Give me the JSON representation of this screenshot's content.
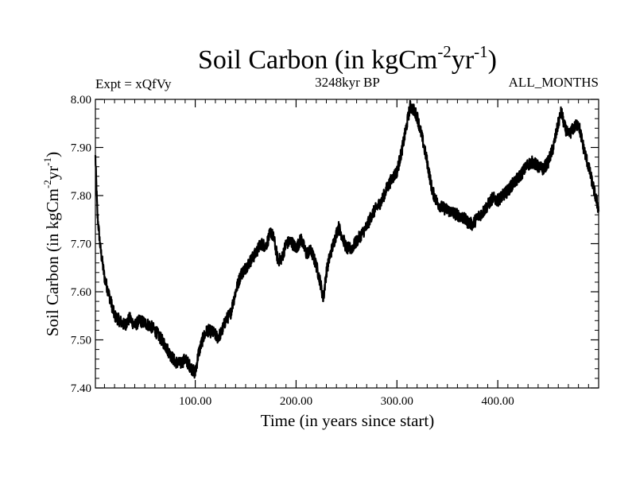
{
  "chart_data": {
    "type": "line",
    "title": "Soil Carbon (in kgCm",
    "title_sup1": "-2",
    "title_mid": "yr",
    "title_sup2": "-1",
    "title_end": ")",
    "subtitle_left": "Expt = xQfVy",
    "subtitle_center": "3248kyr BP",
    "subtitle_right": "ALL_MONTHS",
    "xlabel": "Time (in years since start)",
    "ylabel": "Soil Carbon (in kgCm",
    "ylabel_sup1": "-2",
    "ylabel_mid": "yr",
    "ylabel_sup2": "-1",
    "ylabel_end": ")",
    "xlim": [
      1,
      500
    ],
    "ylim": [
      7.4,
      8.0
    ],
    "x_ticks": [
      100,
      200,
      300,
      400
    ],
    "x_tick_labels": [
      "100.00",
      "200.00",
      "300.00",
      "400.00"
    ],
    "y_ticks": [
      7.4,
      7.5,
      7.6,
      7.7,
      7.8,
      7.9,
      8.0
    ],
    "y_tick_labels": [
      "7.40",
      "7.50",
      "7.60",
      "7.70",
      "7.80",
      "7.90",
      "8.00"
    ],
    "noise_amplitude": 0.013,
    "series": [
      {
        "name": "Soil Carbon",
        "color": "#000000",
        "x": [
          1,
          3,
          6,
          10,
          15,
          20,
          25,
          30,
          35,
          40,
          45,
          50,
          55,
          60,
          65,
          70,
          75,
          80,
          85,
          90,
          95,
          100,
          103,
          108,
          112,
          118,
          122,
          126,
          130,
          135,
          140,
          145,
          150,
          155,
          160,
          165,
          170,
          175,
          178,
          182,
          186,
          190,
          195,
          200,
          205,
          210,
          215,
          220,
          224,
          227,
          230,
          233,
          237,
          242,
          245,
          250,
          255,
          260,
          265,
          270,
          275,
          280,
          285,
          290,
          295,
          300,
          305,
          310,
          313,
          316,
          320,
          325,
          330,
          335,
          340,
          345,
          350,
          355,
          360,
          365,
          370,
          375,
          380,
          385,
          390,
          395,
          400,
          405,
          410,
          415,
          420,
          425,
          430,
          435,
          440,
          445,
          450,
          455,
          460,
          463,
          466,
          470,
          475,
          480,
          485,
          490,
          495,
          500
        ],
        "values": [
          7.88,
          7.76,
          7.69,
          7.63,
          7.59,
          7.55,
          7.54,
          7.53,
          7.545,
          7.53,
          7.54,
          7.535,
          7.53,
          7.52,
          7.505,
          7.49,
          7.47,
          7.455,
          7.45,
          7.46,
          7.445,
          7.43,
          7.47,
          7.505,
          7.52,
          7.515,
          7.505,
          7.515,
          7.54,
          7.555,
          7.6,
          7.635,
          7.65,
          7.665,
          7.68,
          7.7,
          7.695,
          7.725,
          7.71,
          7.665,
          7.67,
          7.7,
          7.705,
          7.69,
          7.71,
          7.68,
          7.685,
          7.655,
          7.62,
          7.585,
          7.64,
          7.67,
          7.7,
          7.735,
          7.72,
          7.69,
          7.69,
          7.705,
          7.72,
          7.735,
          7.76,
          7.775,
          7.79,
          7.815,
          7.835,
          7.85,
          7.895,
          7.95,
          7.985,
          7.98,
          7.965,
          7.92,
          7.87,
          7.81,
          7.785,
          7.775,
          7.77,
          7.765,
          7.76,
          7.755,
          7.745,
          7.74,
          7.755,
          7.765,
          7.78,
          7.795,
          7.79,
          7.8,
          7.81,
          7.825,
          7.835,
          7.85,
          7.865,
          7.87,
          7.86,
          7.855,
          7.87,
          7.9,
          7.95,
          7.975,
          7.945,
          7.925,
          7.94,
          7.95,
          7.9,
          7.86,
          7.815,
          7.77
        ]
      }
    ]
  }
}
